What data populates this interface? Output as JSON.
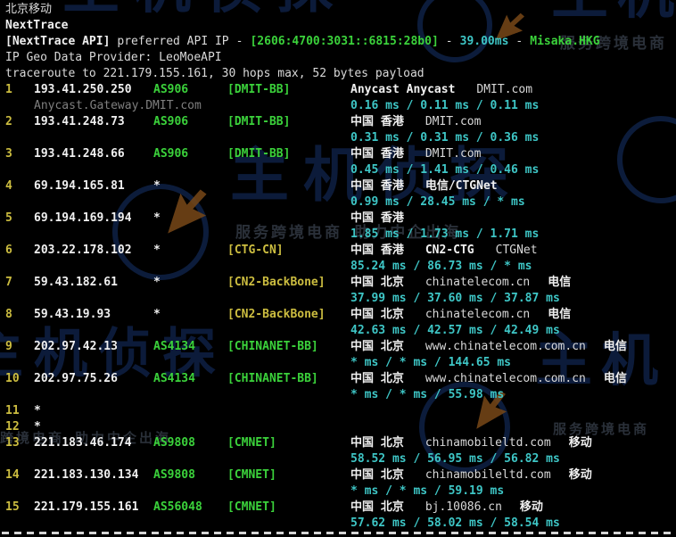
{
  "terminal": {
    "title": "北京移动",
    "app_name": "NextTrace",
    "api_line": {
      "prefix": "[NextTrace API]",
      "label": "preferred API IP",
      "sep1": "-",
      "ip": "[2606:4700:3031::6815:28b0]",
      "sep2": "-",
      "latency": "39.00ms",
      "sep3": "-",
      "node": "Misaka.HKG"
    },
    "geo_provider_line": "IP Geo Data Provider: LeoMoeAPI",
    "traceroute_line": "traceroute to 221.179.155.161, 30 hops max, 52 bytes payload"
  },
  "colors": {
    "background": "#000000",
    "white_bold": "#f0f0f0",
    "white": "#d9d9d9",
    "green": "#3bd23b",
    "yellow": "#ccbd40",
    "cyan": "#3ec6c6",
    "gray": "#7f7f7f"
  },
  "hops": [
    {
      "num": "1",
      "ip": "193.41.250.250",
      "asn": "AS906",
      "asn_color": "green",
      "tag": "[DMIT-BB]",
      "tag_color": "green",
      "hostname": "Anycast.Gateway.DMIT.com",
      "geo": [
        {
          "text": "Anycast Anycast",
          "bold": true
        },
        {
          "text": "DMIT.com",
          "bold": false
        }
      ],
      "latency": "0.16 ms / 0.11 ms / 0.11 ms"
    },
    {
      "num": "2",
      "ip": "193.41.248.73",
      "asn": "AS906",
      "asn_color": "green",
      "tag": "[DMIT-BB]",
      "tag_color": "green",
      "geo": [
        {
          "text": "中国 香港",
          "bold": true
        },
        {
          "text": "DMIT.com",
          "bold": false
        }
      ],
      "latency": "0.31 ms / 0.31 ms / 0.36 ms"
    },
    {
      "num": "3",
      "ip": "193.41.248.66",
      "asn": "AS906",
      "asn_color": "green",
      "tag": "[DMIT-BB]",
      "tag_color": "green",
      "geo": [
        {
          "text": "中国 香港",
          "bold": true
        },
        {
          "text": "DMIT.com",
          "bold": false
        }
      ],
      "latency": "0.45 ms / 1.41 ms / 0.46 ms"
    },
    {
      "num": "4",
      "ip": "69.194.165.81",
      "asn": "*",
      "asn_color": "white",
      "tag": "",
      "tag_color": "green",
      "geo": [
        {
          "text": "中国 香港",
          "bold": true
        },
        {
          "text": "电信/CTGNet",
          "bold": true
        }
      ],
      "latency": "0.99 ms / 28.45 ms / * ms"
    },
    {
      "num": "5",
      "ip": "69.194.169.194",
      "asn": "*",
      "asn_color": "white",
      "tag": "",
      "tag_color": "green",
      "geo": [
        {
          "text": "中国 香港",
          "bold": true
        }
      ],
      "latency": "1.85 ms / 1.73 ms / 1.71 ms"
    },
    {
      "num": "6",
      "ip": "203.22.178.102",
      "asn": "*",
      "asn_color": "white",
      "tag": "[CTG-CN]",
      "tag_color": "yellow",
      "geo": [
        {
          "text": "中国 香港",
          "bold": true
        },
        {
          "text": "CN2-CTG",
          "bold": true
        },
        {
          "text": "CTGNet",
          "bold": false
        }
      ],
      "latency": "85.24 ms / 86.73 ms / * ms"
    },
    {
      "num": "7",
      "ip": "59.43.182.61",
      "asn": "*",
      "asn_color": "white",
      "tag": "[CN2-BackBone]",
      "tag_color": "yellow",
      "geo": [
        {
          "text": "中国 北京",
          "bold": true
        },
        {
          "text": "chinatelecom.cn",
          "bold": false
        },
        {
          "text": "电信",
          "bold": true
        }
      ],
      "latency": "37.99 ms / 37.60 ms / 37.87 ms"
    },
    {
      "num": "8",
      "ip": "59.43.19.93",
      "asn": "*",
      "asn_color": "white",
      "tag": "[CN2-BackBone]",
      "tag_color": "yellow",
      "geo": [
        {
          "text": "中国 北京",
          "bold": true
        },
        {
          "text": "chinatelecom.cn",
          "bold": false
        },
        {
          "text": "电信",
          "bold": true
        }
      ],
      "latency": "42.63 ms / 42.57 ms / 42.49 ms"
    },
    {
      "num": "9",
      "ip": "202.97.42.13",
      "asn": "AS4134",
      "asn_color": "green",
      "tag": "[CHINANET-BB]",
      "tag_color": "green",
      "geo": [
        {
          "text": "中国 北京",
          "bold": true
        },
        {
          "text": "www.chinatelecom.com.cn",
          "bold": false
        },
        {
          "text": "电信",
          "bold": true
        }
      ],
      "latency": "* ms / * ms / 144.65 ms"
    },
    {
      "num": "10",
      "ip": "202.97.75.26",
      "asn": "AS4134",
      "asn_color": "green",
      "tag": "[CHINANET-BB]",
      "tag_color": "green",
      "geo": [
        {
          "text": "中国 北京",
          "bold": true
        },
        {
          "text": "www.chinatelecom.com.cn",
          "bold": false
        },
        {
          "text": "电信",
          "bold": true
        }
      ],
      "latency": "* ms / * ms / 55.98 ms"
    },
    {
      "num": "11",
      "ip": "*",
      "asn": "",
      "asn_color": "white",
      "tag": "",
      "tag_color": "green",
      "geo": [],
      "latency": ""
    },
    {
      "num": "12",
      "ip": "*",
      "asn": "",
      "asn_color": "white",
      "tag": "",
      "tag_color": "green",
      "geo": [],
      "latency": ""
    },
    {
      "num": "13",
      "ip": "221.183.46.174",
      "asn": "AS9808",
      "asn_color": "green",
      "tag": "[CMNET]",
      "tag_color": "green",
      "geo": [
        {
          "text": "中国 北京",
          "bold": true
        },
        {
          "text": "chinamobileltd.com",
          "bold": false
        },
        {
          "text": "移动",
          "bold": true
        }
      ],
      "latency": "58.52 ms / 56.95 ms / 56.82 ms"
    },
    {
      "num": "14",
      "ip": "221.183.130.134",
      "asn": "AS9808",
      "asn_color": "green",
      "tag": "[CMNET]",
      "tag_color": "green",
      "geo": [
        {
          "text": "中国 北京",
          "bold": true
        },
        {
          "text": "chinamobileltd.com",
          "bold": false
        },
        {
          "text": "移动",
          "bold": true
        }
      ],
      "latency": "* ms / * ms / 59.19 ms"
    },
    {
      "num": "15",
      "ip": "221.179.155.161",
      "asn": "AS56048",
      "asn_color": "green",
      "tag": "[CMNET]",
      "tag_color": "green",
      "geo": [
        {
          "text": "中国 北京",
          "bold": true
        },
        {
          "text": "bj.10086.cn",
          "bold": false
        },
        {
          "text": "移动",
          "bold": true
        }
      ],
      "latency": "57.62 ms / 58.02 ms / 58.54 ms"
    }
  ],
  "watermark": {
    "brand_text": "主机侦探",
    "brand_short": "主机",
    "slogan": "服务跨境电商 助力中企出海",
    "slogan_short": "服务跨境电商",
    "slogan_tail": "跨境电商 助力中企出海"
  }
}
